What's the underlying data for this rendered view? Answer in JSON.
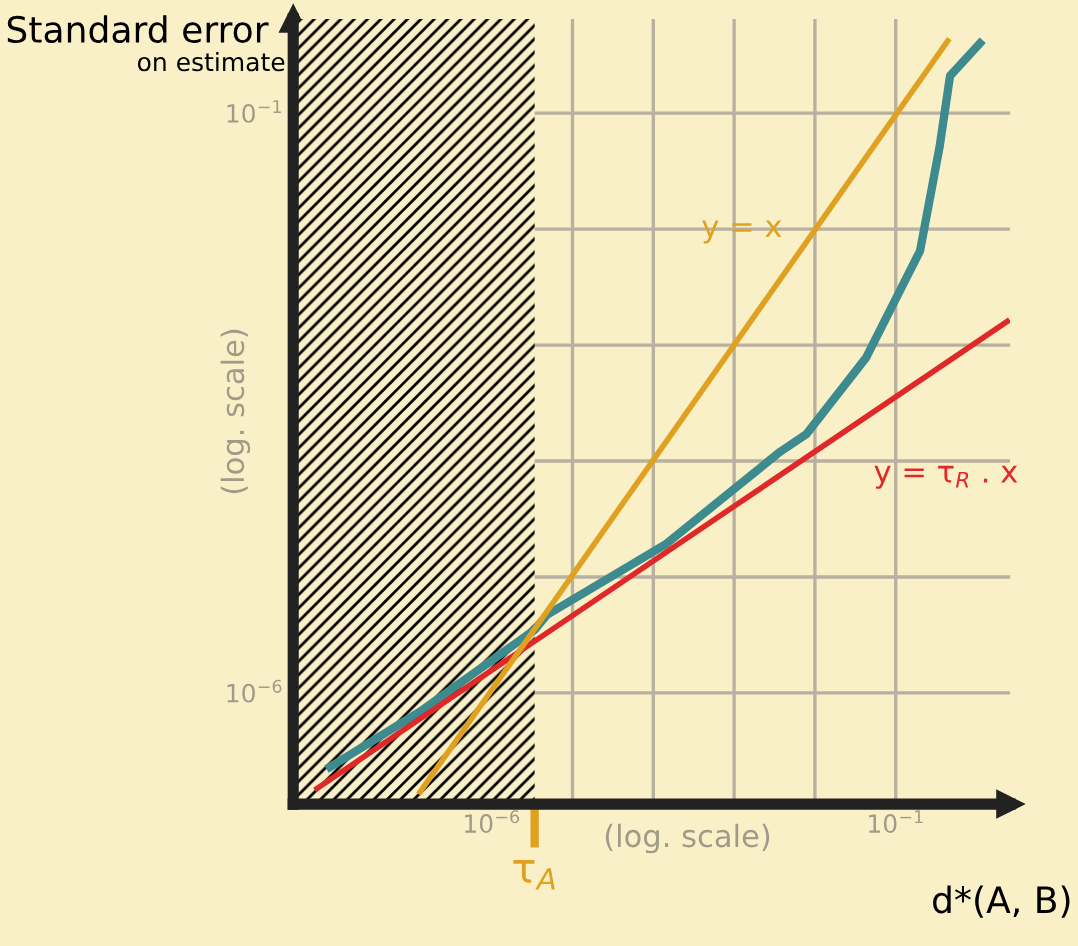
{
  "chart_data": {
    "type": "line",
    "title": "Standard error",
    "subtitle": "on estimate",
    "xlabel": "(log. scale)",
    "ylabel": "(log. scale)",
    "log": "xy",
    "grid": true,
    "xlim": [
      3.5e-09,
      2.6
    ],
    "ylim": [
      1.1e-07,
      0.65
    ],
    "xticks": [
      {
        "value": 1e-06,
        "label": "10$^{−6}$"
      },
      {
        "value": 1e-05,
        "label": null
      },
      {
        "value": 0.0001,
        "label": null
      },
      {
        "value": 0.001,
        "label": null
      },
      {
        "value": 0.01,
        "label": null
      },
      {
        "value": 0.1,
        "label": "10$^{−1}$"
      }
    ],
    "yticks": [
      {
        "value": 1e-06,
        "label": "10$^{−6}$"
      },
      {
        "value": 1e-05,
        "label": null
      },
      {
        "value": 0.0001,
        "label": null
      },
      {
        "value": 0.001,
        "label": null
      },
      {
        "value": 0.01,
        "label": null
      },
      {
        "value": 0.1,
        "label": "10$^{−1}$"
      }
    ],
    "series": [
      {
        "name": "y = x",
        "color": "#e0a020",
        "x": [
          1.3e-07,
          0.44
        ],
        "values": [
          1.4e-07,
          0.42
        ]
      },
      {
        "name": "y = τ$_{R}$ . x",
        "color": "#e02828",
        "x": [
          6.9e-09,
          2.4
        ],
        "values": [
          1.5e-07,
          0.0016
        ]
      },
      {
        "color": "#3d8a8f",
        "x": [
          1e-08,
          1.3e-07,
          3.4e-06,
          4.8e-06,
          0.00014,
          0.0037,
          0.0078,
          0.043,
          0.2,
          0.35,
          0.47,
          1.1
        ],
        "values": [
          2.3e-07,
          6.9e-07,
          3.5e-06,
          4.7e-06,
          1.9e-05,
          0.00012,
          0.00017,
          0.00078,
          0.0065,
          0.052,
          0.21,
          0.4
        ]
      }
    ],
    "bands": [
      {
        "axis": "x",
        "from": 3.5e-09,
        "to": 3.4e-06,
        "color": "#000000"
      }
    ],
    "ref_lines": [
      {
        "axis": "x",
        "value": 3.4e-06,
        "label": "τ$_{A}$",
        "color": "#e0a020"
      }
    ],
    "annotations": [
      "d*(A, B)"
    ]
  }
}
